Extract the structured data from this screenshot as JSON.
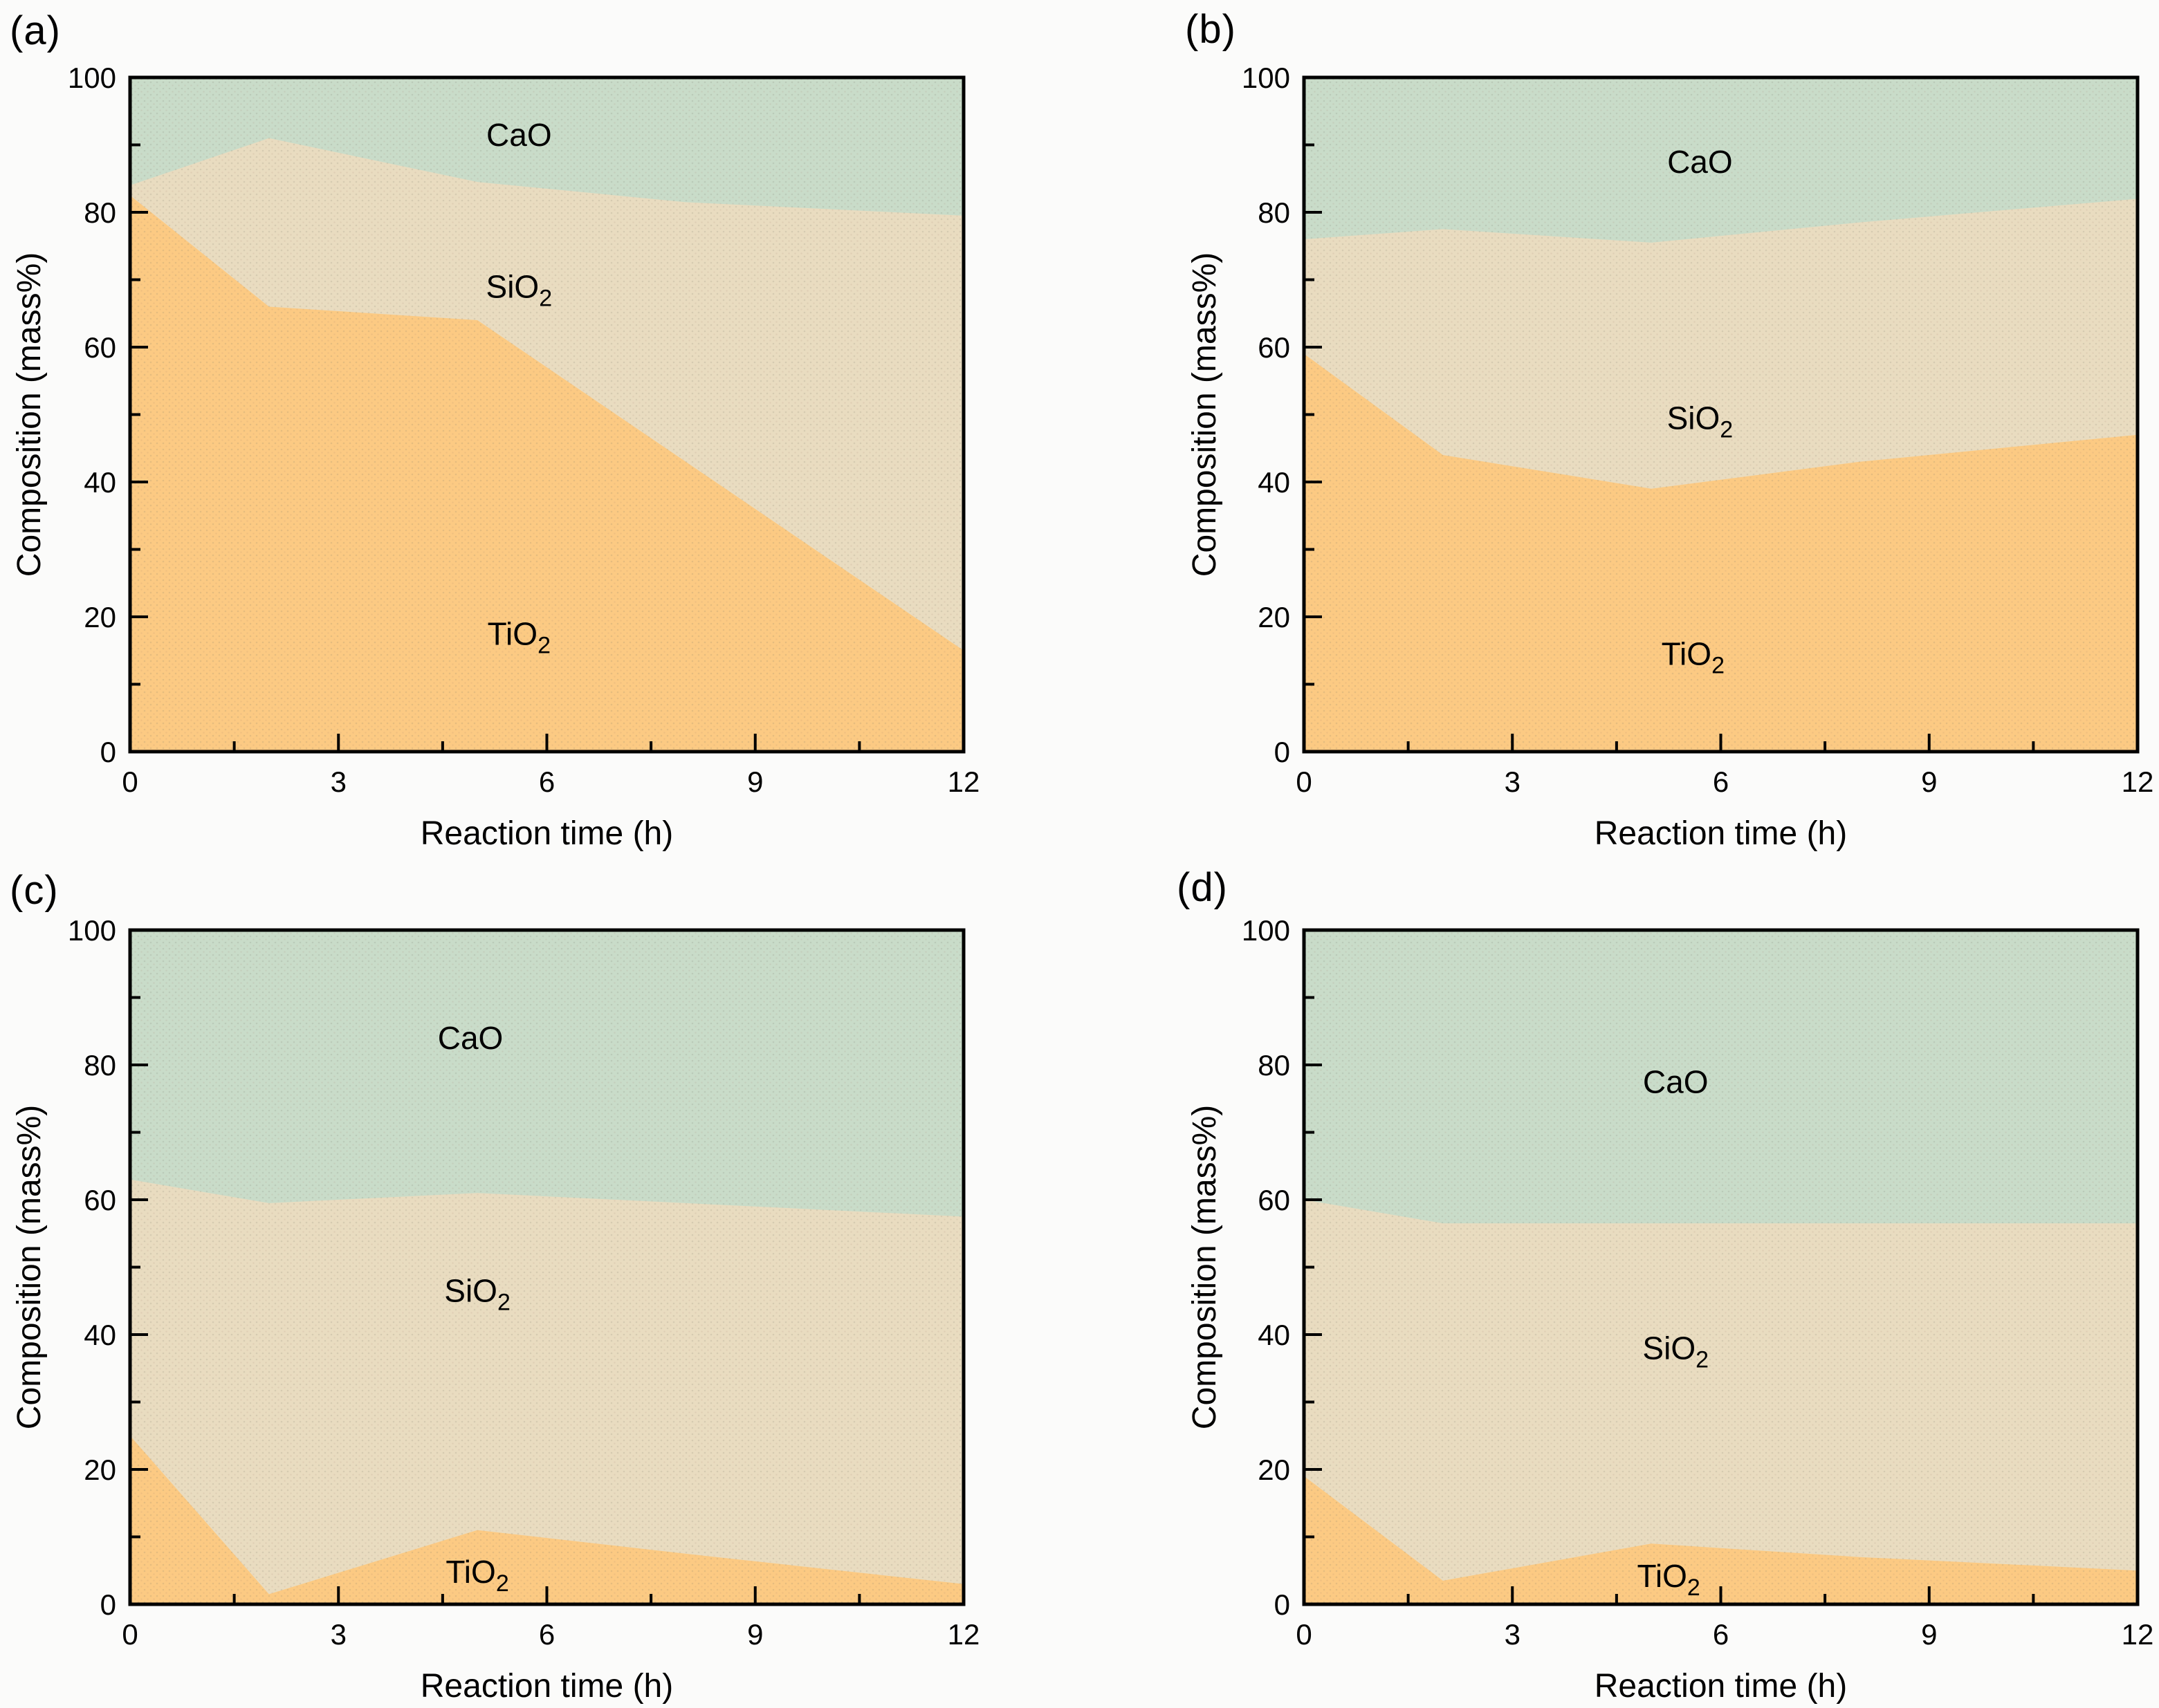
{
  "page": {
    "background": "#fbfbfa"
  },
  "colors": {
    "TiO2": "#fcca83",
    "SiO2": "#e9dcc0",
    "CaO": "#c9dcc9",
    "axis": "#000000",
    "text": "#000000"
  },
  "axes": {
    "xlabel": "Reaction time (h)",
    "ylabel": "Composition (mass%)",
    "xlim": [
      0,
      12
    ],
    "ylim": [
      0,
      100
    ],
    "x_major_ticks": [
      0,
      3,
      6,
      9,
      12
    ],
    "x_minor_ticks": [
      1.5,
      4.5,
      7.5,
      10.5
    ],
    "y_major_ticks": [
      0,
      20,
      40,
      60,
      80,
      100
    ],
    "y_minor_ticks": [
      10,
      30,
      50,
      70,
      90
    ]
  },
  "chart_data": [
    {
      "panel_label": "(a)",
      "type": "area",
      "stacked": true,
      "x": [
        0,
        2,
        5,
        8,
        12
      ],
      "series": [
        {
          "name": "TiO2",
          "values": [
            82.5,
            66,
            64,
            43,
            15
          ]
        },
        {
          "name": "SiO2",
          "values": [
            1.5,
            25,
            20.5,
            38.5,
            64.5
          ]
        },
        {
          "name": "CaO",
          "values": [
            16,
            9,
            15.5,
            18.5,
            20.5
          ]
        }
      ],
      "area_labels": [
        {
          "text": "CaO",
          "x": 5.6,
          "y": 91.5
        },
        {
          "text": "SiO2",
          "x": 5.6,
          "y": 69
        },
        {
          "text": "TiO2",
          "x": 5.6,
          "y": 17.5
        }
      ]
    },
    {
      "panel_label": "(b)",
      "type": "area",
      "stacked": true,
      "x": [
        0,
        2,
        5,
        8,
        12
      ],
      "series": [
        {
          "name": "TiO2",
          "values": [
            59,
            44,
            39,
            43,
            47
          ]
        },
        {
          "name": "SiO2",
          "values": [
            17,
            33.5,
            36.5,
            35.5,
            35
          ]
        },
        {
          "name": "CaO",
          "values": [
            24,
            22.5,
            24.5,
            21.5,
            18
          ]
        }
      ],
      "area_labels": [
        {
          "text": "CaO",
          "x": 5.7,
          "y": 87.5
        },
        {
          "text": "SiO2",
          "x": 5.7,
          "y": 49.5
        },
        {
          "text": "TiO2",
          "x": 5.6,
          "y": 14.5
        }
      ]
    },
    {
      "panel_label": "(c)",
      "type": "area",
      "stacked": true,
      "x": [
        0,
        2,
        5,
        8,
        12
      ],
      "series": [
        {
          "name": "TiO2",
          "values": [
            25,
            1.5,
            11,
            7.5,
            3
          ]
        },
        {
          "name": "SiO2",
          "values": [
            38,
            58,
            50,
            52,
            54.5
          ]
        },
        {
          "name": "CaO",
          "values": [
            37,
            40.5,
            39,
            40.5,
            42.5
          ]
        }
      ],
      "area_labels": [
        {
          "text": "CaO",
          "x": 4.9,
          "y": 84
        },
        {
          "text": "SiO2",
          "x": 5.0,
          "y": 46.5
        },
        {
          "text": "TiO2",
          "x": 5.0,
          "y": 4.8
        }
      ]
    },
    {
      "panel_label": "(d)",
      "type": "area",
      "stacked": true,
      "x": [
        0,
        2,
        5,
        8,
        12
      ],
      "series": [
        {
          "name": "TiO2",
          "values": [
            19,
            3.5,
            9,
            7,
            5
          ]
        },
        {
          "name": "SiO2",
          "values": [
            41,
            53,
            47.5,
            49.5,
            51.5
          ]
        },
        {
          "name": "CaO",
          "values": [
            40,
            43.5,
            43.5,
            43.5,
            43.5
          ]
        }
      ],
      "area_labels": [
        {
          "text": "CaO",
          "x": 5.35,
          "y": 77.5
        },
        {
          "text": "SiO2",
          "x": 5.35,
          "y": 38
        },
        {
          "text": "TiO2",
          "x": 5.25,
          "y": 4.2
        }
      ]
    }
  ]
}
